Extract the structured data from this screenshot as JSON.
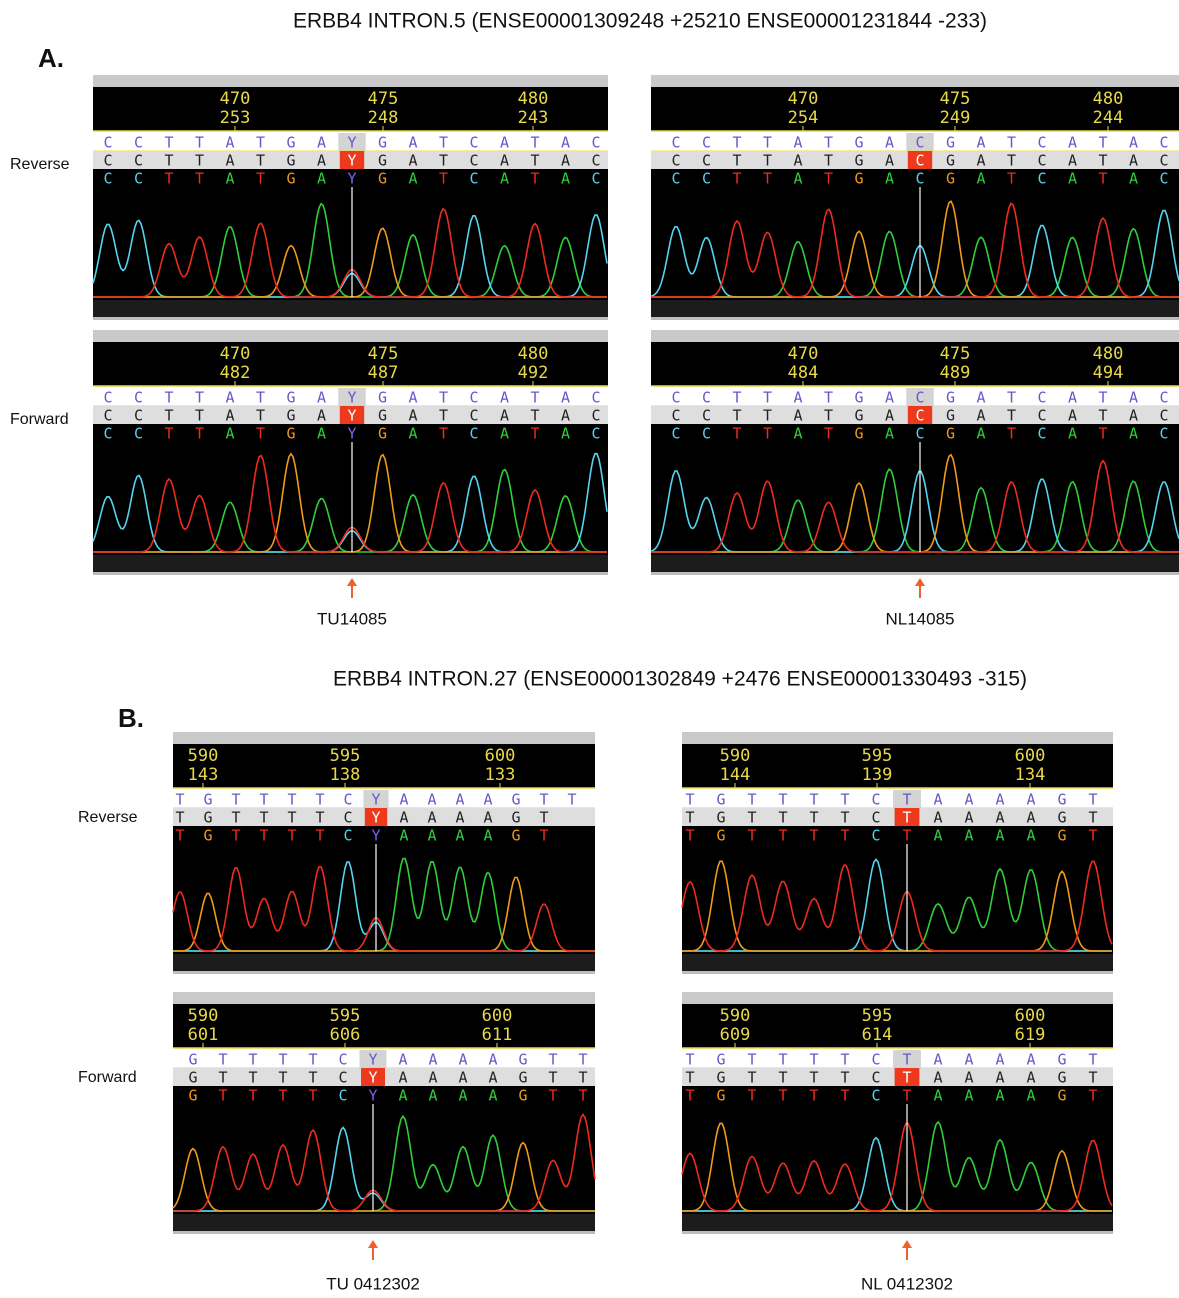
{
  "sections": [
    {
      "label": "A.",
      "title": "ERBB4 INTRON.5 (ENSE00001309248 +25210 ENSE00001231844 -233)",
      "strands": [
        "Reverse",
        "Forward"
      ],
      "panels": [
        {
          "sample": "TU14085",
          "tracks": [
            {
              "ticks": [
                {
                  "top": 470,
                  "bottom": 253
                },
                {
                  "top": 475,
                  "bottom": 248
                },
                {
                  "top": 480,
                  "bottom": 243
                }
              ],
              "rows": [
                [
                  "C",
                  "C",
                  "T",
                  "T",
                  "A",
                  "T",
                  "G",
                  "A",
                  "Y",
                  "G",
                  "A",
                  "T",
                  "C",
                  "A",
                  "T",
                  "A",
                  "C"
                ],
                [
                  "C",
                  "C",
                  "T",
                  "T",
                  "A",
                  "T",
                  "G",
                  "A",
                  "Y",
                  "G",
                  "A",
                  "T",
                  "C",
                  "A",
                  "T",
                  "A",
                  "C"
                ],
                [
                  "C",
                  "C",
                  "T",
                  "T",
                  "A",
                  "T",
                  "G",
                  "A",
                  "Y",
                  "G",
                  "A",
                  "T",
                  "C",
                  "A",
                  "T",
                  "A",
                  "C"
                ]
              ]
            },
            {
              "ticks": [
                {
                  "top": 470,
                  "bottom": 482
                },
                {
                  "top": 475,
                  "bottom": 487
                },
                {
                  "top": 480,
                  "bottom": 492
                }
              ],
              "rows": [
                [
                  "C",
                  "C",
                  "T",
                  "T",
                  "A",
                  "T",
                  "G",
                  "A",
                  "Y",
                  "G",
                  "A",
                  "T",
                  "C",
                  "A",
                  "T",
                  "A",
                  "C"
                ],
                [
                  "C",
                  "C",
                  "T",
                  "T",
                  "A",
                  "T",
                  "G",
                  "A",
                  "Y",
                  "G",
                  "A",
                  "T",
                  "C",
                  "A",
                  "T",
                  "A",
                  "C"
                ],
                [
                  "C",
                  "C",
                  "T",
                  "T",
                  "A",
                  "T",
                  "G",
                  "A",
                  "Y",
                  "G",
                  "A",
                  "T",
                  "C",
                  "A",
                  "T",
                  "A",
                  "C"
                ]
              ]
            }
          ]
        },
        {
          "sample": "NL14085",
          "tracks": [
            {
              "ticks": [
                {
                  "top": 470,
                  "bottom": 254
                },
                {
                  "top": 475,
                  "bottom": 249
                },
                {
                  "top": 480,
                  "bottom": 244
                }
              ],
              "rows": [
                [
                  "C",
                  "C",
                  "T",
                  "T",
                  "A",
                  "T",
                  "G",
                  "A",
                  "C",
                  "G",
                  "A",
                  "T",
                  "C",
                  "A",
                  "T",
                  "A",
                  "C"
                ],
                [
                  "C",
                  "C",
                  "T",
                  "T",
                  "A",
                  "T",
                  "G",
                  "A",
                  "C",
                  "G",
                  "A",
                  "T",
                  "C",
                  "A",
                  "T",
                  "A",
                  "C"
                ],
                [
                  "C",
                  "C",
                  "T",
                  "T",
                  "A",
                  "T",
                  "G",
                  "A",
                  "C",
                  "G",
                  "A",
                  "T",
                  "C",
                  "A",
                  "T",
                  "A",
                  "C"
                ]
              ]
            },
            {
              "ticks": [
                {
                  "top": 470,
                  "bottom": 484
                },
                {
                  "top": 475,
                  "bottom": 489
                },
                {
                  "top": 480,
                  "bottom": 494
                }
              ],
              "rows": [
                [
                  "C",
                  "C",
                  "T",
                  "T",
                  "A",
                  "T",
                  "G",
                  "A",
                  "C",
                  "G",
                  "A",
                  "T",
                  "C",
                  "A",
                  "T",
                  "A",
                  "C"
                ],
                [
                  "C",
                  "C",
                  "T",
                  "T",
                  "A",
                  "T",
                  "G",
                  "A",
                  "C",
                  "G",
                  "A",
                  "T",
                  "C",
                  "A",
                  "T",
                  "A",
                  "C"
                ],
                [
                  "C",
                  "C",
                  "T",
                  "T",
                  "A",
                  "T",
                  "G",
                  "A",
                  "C",
                  "G",
                  "A",
                  "T",
                  "C",
                  "A",
                  "T",
                  "A",
                  "C"
                ]
              ]
            }
          ]
        }
      ]
    },
    {
      "label": "B.",
      "title": "ERBB4 INTRON.27 (ENSE00001302849 +2476 ENSE00001330493 -315)",
      "strands": [
        "Reverse",
        "Forward"
      ],
      "panels": [
        {
          "sample": "TU 0412302",
          "tracks": [
            {
              "ticks": [
                {
                  "top": 590,
                  "bottom": 143
                },
                {
                  "top": 595,
                  "bottom": 138
                },
                {
                  "top": 600,
                  "bottom": 133
                }
              ],
              "rows": [
                [
                  "T",
                  "G",
                  "T",
                  "T",
                  "T",
                  "T",
                  "C",
                  "Y",
                  "A",
                  "A",
                  "A",
                  "A",
                  "G",
                  "T",
                  "T"
                ],
                [
                  "T",
                  "G",
                  "T",
                  "T",
                  "T",
                  "T",
                  "C",
                  "Y",
                  "A",
                  "A",
                  "A",
                  "A",
                  "G",
                  "T"
                ],
                [
                  "T",
                  "G",
                  "T",
                  "T",
                  "T",
                  "T",
                  "C",
                  "Y",
                  "A",
                  "A",
                  "A",
                  "A",
                  "G",
                  "T"
                ]
              ]
            },
            {
              "ticks": [
                {
                  "top": 590,
                  "bottom": 601
                },
                {
                  "top": 595,
                  "bottom": 606
                },
                {
                  "top": 600,
                  "bottom": 611
                }
              ],
              "rows": [
                [
                  "G",
                  "T",
                  "T",
                  "T",
                  "T",
                  "C",
                  "Y",
                  "A",
                  "A",
                  "A",
                  "A",
                  "G",
                  "T",
                  "T"
                ],
                [
                  "G",
                  "T",
                  "T",
                  "T",
                  "T",
                  "C",
                  "Y",
                  "A",
                  "A",
                  "A",
                  "A",
                  "G",
                  "T",
                  "T"
                ],
                [
                  "G",
                  "T",
                  "T",
                  "T",
                  "T",
                  "C",
                  "Y",
                  "A",
                  "A",
                  "A",
                  "A",
                  "G",
                  "T",
                  "T"
                ]
              ]
            }
          ]
        },
        {
          "sample": "NL 0412302",
          "tracks": [
            {
              "ticks": [
                {
                  "top": 590,
                  "bottom": 144
                },
                {
                  "top": 595,
                  "bottom": 139
                },
                {
                  "top": 600,
                  "bottom": 134
                }
              ],
              "rows": [
                [
                  "T",
                  "G",
                  "T",
                  "T",
                  "T",
                  "T",
                  "C",
                  "T",
                  "A",
                  "A",
                  "A",
                  "A",
                  "G",
                  "T"
                ],
                [
                  "T",
                  "G",
                  "T",
                  "T",
                  "T",
                  "T",
                  "C",
                  "T",
                  "A",
                  "A",
                  "A",
                  "A",
                  "G",
                  "T"
                ],
                [
                  "T",
                  "G",
                  "T",
                  "T",
                  "T",
                  "T",
                  "C",
                  "T",
                  "A",
                  "A",
                  "A",
                  "A",
                  "G",
                  "T"
                ]
              ]
            },
            {
              "ticks": [
                {
                  "top": 590,
                  "bottom": 609
                },
                {
                  "top": 595,
                  "bottom": 614
                },
                {
                  "top": 600,
                  "bottom": 619
                }
              ],
              "rows": [
                [
                  "T",
                  "G",
                  "T",
                  "T",
                  "T",
                  "T",
                  "C",
                  "T",
                  "A",
                  "A",
                  "A",
                  "A",
                  "G",
                  "T"
                ],
                [
                  "T",
                  "G",
                  "T",
                  "T",
                  "T",
                  "T",
                  "C",
                  "T",
                  "A",
                  "A",
                  "A",
                  "A",
                  "G",
                  "T"
                ],
                [
                  "T",
                  "G",
                  "T",
                  "T",
                  "T",
                  "T",
                  "C",
                  "T",
                  "A",
                  "A",
                  "A",
                  "A",
                  "G",
                  "T"
                ]
              ]
            }
          ]
        }
      ]
    }
  ]
}
